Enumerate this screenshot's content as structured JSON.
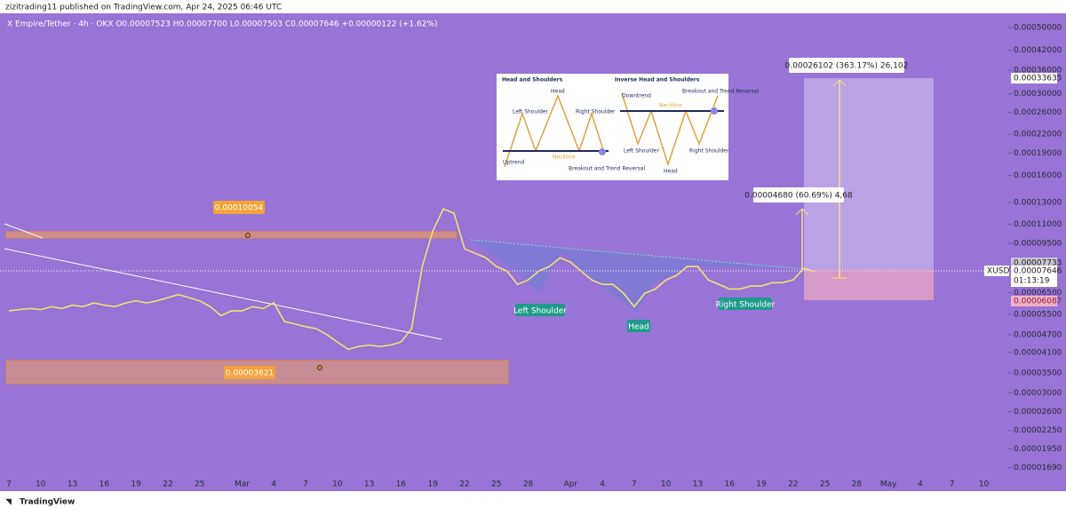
{
  "header": "zizitrading11 published on TradingView.com, Apr 24, 2025 06:46 UTC",
  "brand": "TradingView",
  "chart_data": {
    "type": "line",
    "title": "X Empire/Tether · 4h · OKX  O0.00007523 H0.00007700 L0.00007503 C0.00007646 +0.00000122 (+1.62%)",
    "log": true,
    "categories": [
      "7",
      null,
      null,
      "10",
      null,
      null,
      "13",
      null,
      null,
      "16",
      null,
      null,
      "19",
      null,
      null,
      "22",
      null,
      null,
      "25",
      null,
      null,
      null,
      "Mar",
      null,
      null,
      "4",
      null,
      null,
      "7",
      null,
      null,
      "10",
      null,
      null,
      "13",
      null,
      null,
      "16",
      null,
      null,
      "19",
      null,
      null,
      "22",
      null,
      null,
      "25",
      null,
      null,
      "28",
      null,
      null,
      null,
      "Apr",
      null,
      null,
      "4",
      null,
      null,
      "7",
      null,
      null,
      "10",
      null,
      null,
      "13",
      null,
      null,
      "16",
      null,
      null,
      "19",
      null,
      null,
      "22",
      null,
      null,
      "25",
      null,
      null,
      "28",
      null,
      null,
      "May",
      null,
      null,
      "4",
      null,
      null,
      "7",
      null,
      null,
      "10"
    ],
    "series": [
      {
        "name": "XUSDT",
        "color": "#f4e07a",
        "values": [
          5.64e-05,
          5.7e-05,
          5.75e-05,
          5.7e-05,
          5.83e-05,
          5.75e-05,
          5.9e-05,
          5.83e-05,
          6e-05,
          5.9e-05,
          5.83e-05,
          6e-05,
          6.1e-05,
          6e-05,
          6.1e-05,
          6.25e-05,
          6.4e-05,
          6.25e-05,
          6.1e-05,
          5.83e-05,
          5.44e-05,
          5.64e-05,
          5.64e-05,
          5.83e-05,
          5.75e-05,
          6e-05,
          5.2e-05,
          5.1e-05,
          5e-05,
          4.92e-05,
          4.7e-05,
          4.44e-05,
          4.2e-05,
          4.29e-05,
          4.34e-05,
          4.29e-05,
          4.34e-05,
          4.44e-05,
          4.92e-05,
          7.94e-05,
          0.0001043,
          0.0001238,
          0.0001197,
          9.1e-05,
          8.79e-05,
          8.49e-05,
          7.94e-05,
          7.67e-05,
          6.92e-05,
          7.16e-05,
          7.67e-05,
          7.94e-05,
          8.49e-05,
          8.21e-05,
          7.67e-05,
          7.16e-05,
          6.92e-05,
          6.92e-05,
          6.46e-05,
          5.83e-05,
          6.46e-05,
          6.68e-05,
          7.16e-05,
          7.41e-05,
          7.94e-05,
          7.94e-05,
          7.16e-05,
          6.92e-05,
          6.68e-05,
          6.68e-05,
          6.83e-05,
          6.83e-05,
          7.01e-05,
          7.01e-05,
          7.16e-05,
          7.83e-05,
          7.646e-05,
          null,
          null,
          null,
          null,
          null,
          null,
          null,
          null,
          null,
          null,
          null,
          null,
          null,
          null,
          null,
          null
        ]
      }
    ],
    "ylim": [
      1.54e-05,
      0.000618
    ],
    "yticks": [
      {
        "value": 0.0005,
        "label": "0.00050000"
      },
      {
        "value": 0.00042,
        "label": "0.00042000"
      },
      {
        "value": 0.00036,
        "label": "0.00036000"
      },
      {
        "value": 0.0003,
        "label": "0.00030000"
      },
      {
        "value": 0.00026,
        "label": "0.00026000"
      },
      {
        "value": 0.00022,
        "label": "0.00022000"
      },
      {
        "value": 0.00019,
        "label": "0.00019000"
      },
      {
        "value": 0.00016,
        "label": "0.00016000"
      },
      {
        "value": 0.00013,
        "label": "0.00013000"
      },
      {
        "value": 0.00011,
        "label": "0.00011000"
      },
      {
        "value": 9.5e-05,
        "label": "0.00009500"
      },
      {
        "value": 6.5e-05,
        "label": "0.00006500"
      },
      {
        "value": 5.5e-05,
        "label": "0.00005500"
      },
      {
        "value": 4.7e-05,
        "label": "0.00004700"
      },
      {
        "value": 4.1e-05,
        "label": "0.00004100"
      },
      {
        "value": 3.5e-05,
        "label": "0.00003500"
      },
      {
        "value": 3e-05,
        "label": "0.00003000"
      },
      {
        "value": 2.6e-05,
        "label": "0.00002600"
      },
      {
        "value": 2.25e-05,
        "label": "0.00002250"
      },
      {
        "value": 1.95e-05,
        "label": "0.00001950"
      },
      {
        "value": 1.69e-05,
        "label": "0.00001690"
      }
    ],
    "annotations": [
      "0.00010054",
      "0.00003621",
      "Left Shoulder",
      "Head",
      "Right Shoulder",
      "0.00004680 (60.69%) 4,68",
      "0.00026102 (363.17%) 26,102"
    ],
    "price_labels": [
      "0.00033635",
      "0.00007733",
      "XUSDT",
      "0.00007646",
      "01:13:19",
      "0.00006087"
    ],
    "inset": {
      "left_title": "Head and Shoulders",
      "right_title": "Inverse Head and Shoulders",
      "left_labels": [
        "Head",
        "Left Shoulder",
        "Right Shoulder",
        "Neckline",
        "Uptrend",
        "Breakout and Trend Reversal"
      ],
      "right_labels": [
        "Downtrend",
        "Breakout and Trend Reversal",
        "Neckline",
        "Left Shoulder",
        "Right Shoulder",
        "Head"
      ]
    }
  }
}
